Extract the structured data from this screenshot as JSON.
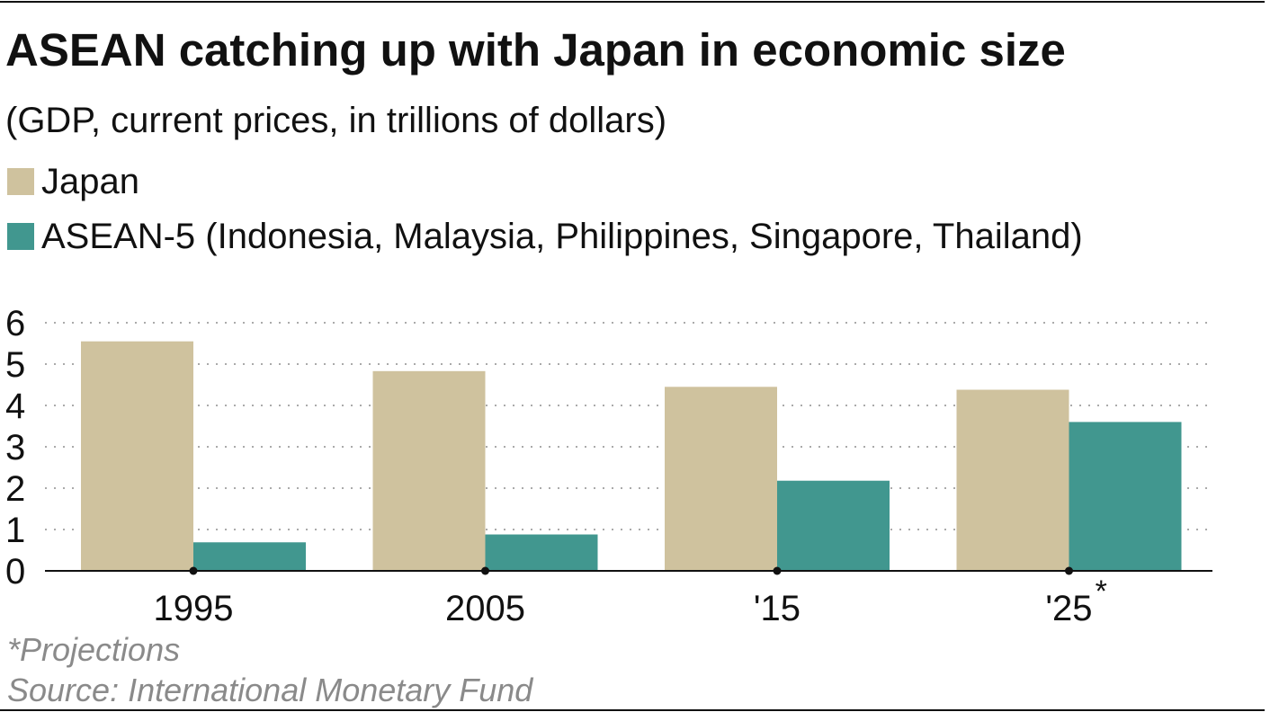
{
  "chart_data": {
    "type": "bar",
    "title": "ASEAN catching up with Japan in economic size",
    "subtitle": "(GDP, current prices, in trillions of dollars)",
    "categories": [
      "1995",
      "2005",
      "'15",
      "'25"
    ],
    "category_marks": [
      "",
      "",
      "",
      "*"
    ],
    "series": [
      {
        "name": "Japan",
        "color": "#cfc29e",
        "values": [
          5.55,
          4.83,
          4.45,
          4.38
        ]
      },
      {
        "name": "ASEAN-5 (Indonesia, Malaysia, Philippines, Singapore, Thailand)",
        "color": "#41978f",
        "values": [
          0.69,
          0.88,
          2.18,
          3.6
        ]
      }
    ],
    "y_ticks": [
      "0",
      "1",
      "2",
      "3",
      "4",
      "5",
      "6"
    ],
    "ylim": [
      0,
      6
    ],
    "grid": true,
    "legend_position": "top-left"
  },
  "footnotes": {
    "projections": "*Projections",
    "source": "Source: International Monetary Fund"
  }
}
